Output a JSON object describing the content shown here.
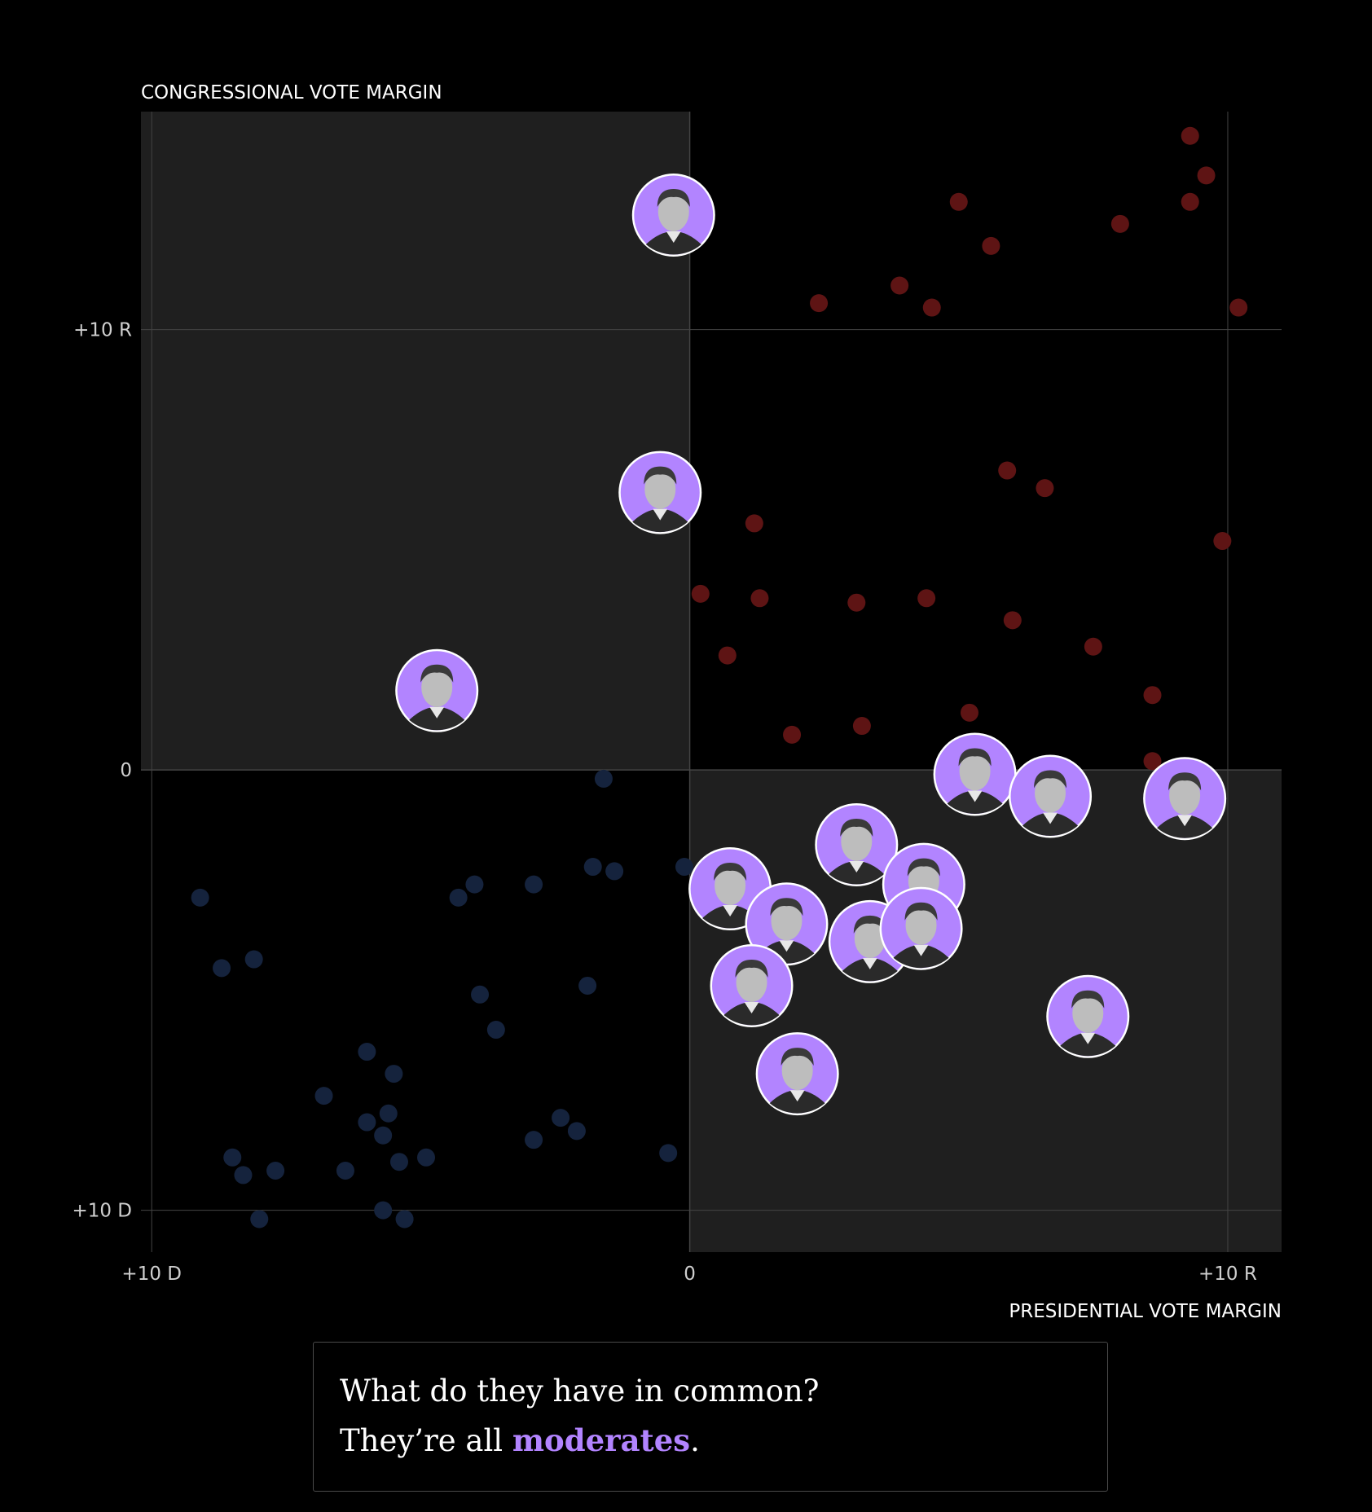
{
  "chart_data": {
    "type": "scatter",
    "xlabel": "PRESIDENTIAL VOTE MARGIN",
    "ylabel": "CONGRESSIONAL VOTE MARGIN",
    "xlim": [
      -10.2,
      11.0
    ],
    "ylim": [
      -10.95,
      14.95
    ],
    "x_ticks": [
      {
        "v": -10,
        "label": "+10 D"
      },
      {
        "v": 0,
        "label": "0"
      },
      {
        "v": 10,
        "label": "+10 R"
      }
    ],
    "y_ticks": [
      {
        "v": 10,
        "label": "+10 R"
      },
      {
        "v": 0,
        "label": "0"
      },
      {
        "v": -10,
        "label": "+10 D"
      }
    ],
    "grid": true,
    "highlight_quadrants": [
      "D-president / R-congress",
      "R-president / D-congress"
    ],
    "colors": {
      "republican": "#5e1414",
      "democrat": "#15233d",
      "highlight": "#b284ff",
      "quadrant_fill": "#1f1f1f",
      "grid": "#444444"
    },
    "series": [
      {
        "party": "republican",
        "points": [
          [
            9.3,
            14.4
          ],
          [
            9.6,
            13.5
          ],
          [
            9.3,
            12.9
          ],
          [
            8.0,
            12.4
          ],
          [
            5.0,
            12.9
          ],
          [
            5.6,
            11.9
          ],
          [
            3.9,
            11.0
          ],
          [
            4.5,
            10.5
          ],
          [
            2.4,
            10.6
          ],
          [
            10.2,
            10.5
          ],
          [
            5.9,
            6.8
          ],
          [
            6.6,
            6.4
          ],
          [
            1.2,
            5.6
          ],
          [
            9.9,
            5.2
          ],
          [
            0.2,
            4.0
          ],
          [
            1.3,
            3.9
          ],
          [
            3.1,
            3.8
          ],
          [
            4.4,
            3.9
          ],
          [
            6.0,
            3.4
          ],
          [
            7.5,
            2.8
          ],
          [
            0.7,
            2.6
          ],
          [
            8.6,
            1.7
          ],
          [
            5.2,
            1.3
          ],
          [
            1.9,
            0.8
          ],
          [
            3.2,
            1.0
          ],
          [
            8.6,
            0.2
          ]
        ]
      },
      {
        "party": "democrat",
        "points": [
          [
            -1.6,
            -0.2
          ],
          [
            -9.1,
            -2.9
          ],
          [
            -4.3,
            -2.9
          ],
          [
            -4.0,
            -2.6
          ],
          [
            -2.9,
            -2.6
          ],
          [
            -1.8,
            -2.2
          ],
          [
            -1.4,
            -2.3
          ],
          [
            -0.1,
            -2.2
          ],
          [
            -8.7,
            -4.5
          ],
          [
            -8.1,
            -4.3
          ],
          [
            -3.9,
            -5.1
          ],
          [
            -1.9,
            -4.9
          ],
          [
            -3.6,
            -5.9
          ],
          [
            -6.0,
            -6.4
          ],
          [
            -5.5,
            -6.9
          ],
          [
            -6.8,
            -7.4
          ],
          [
            -6.0,
            -8.0
          ],
          [
            -5.6,
            -7.8
          ],
          [
            -5.7,
            -8.3
          ],
          [
            -2.4,
            -7.9
          ],
          [
            -2.1,
            -8.2
          ],
          [
            -2.9,
            -8.4
          ],
          [
            -8.5,
            -8.8
          ],
          [
            -8.3,
            -9.2
          ],
          [
            -7.7,
            -9.1
          ],
          [
            -6.4,
            -9.1
          ],
          [
            -5.4,
            -8.9
          ],
          [
            -4.9,
            -8.8
          ],
          [
            -0.4,
            -8.7
          ],
          [
            -5.7,
            -10.0
          ],
          [
            -5.3,
            -10.2
          ],
          [
            -8.0,
            -10.2
          ]
        ]
      }
    ],
    "highlighted_members": [
      [
        -0.3,
        12.6
      ],
      [
        -0.55,
        6.3
      ],
      [
        -4.7,
        1.8
      ],
      [
        5.3,
        -0.1
      ],
      [
        6.7,
        -0.6
      ],
      [
        9.2,
        -0.65
      ],
      [
        3.1,
        -1.7
      ],
      [
        0.75,
        -2.7
      ],
      [
        4.35,
        -2.6
      ],
      [
        1.8,
        -3.5
      ],
      [
        3.35,
        -3.9
      ],
      [
        4.3,
        -3.6
      ],
      [
        1.15,
        -4.9
      ],
      [
        2.0,
        -6.9
      ],
      [
        7.4,
        -5.6
      ]
    ]
  },
  "caption": {
    "line1": "What do they have in common?",
    "line2_before": "They’re all ",
    "line2_highlight": "moderates",
    "line2_after": "."
  }
}
